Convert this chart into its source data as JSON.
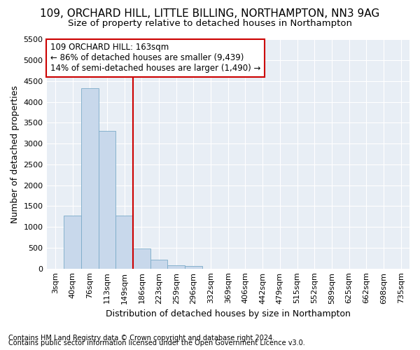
{
  "title1": "109, ORCHARD HILL, LITTLE BILLING, NORTHAMPTON, NN3 9AG",
  "title2": "Size of property relative to detached houses in Northampton",
  "xlabel": "Distribution of detached houses by size in Northampton",
  "ylabel": "Number of detached properties",
  "bar_labels": [
    "3sqm",
    "40sqm",
    "76sqm",
    "113sqm",
    "149sqm",
    "186sqm",
    "223sqm",
    "259sqm",
    "296sqm",
    "332sqm",
    "369sqm",
    "406sqm",
    "442sqm",
    "479sqm",
    "515sqm",
    "552sqm",
    "589sqm",
    "625sqm",
    "662sqm",
    "698sqm",
    "735sqm"
  ],
  "bar_heights": [
    0,
    1270,
    4330,
    3300,
    1280,
    480,
    220,
    80,
    55,
    0,
    0,
    0,
    0,
    0,
    0,
    0,
    0,
    0,
    0,
    0,
    0
  ],
  "bar_color": "#c8d8eb",
  "bar_edge_color": "#7aaac8",
  "vline_x": 4.5,
  "vline_color": "#cc0000",
  "ylim": [
    0,
    5500
  ],
  "yticks": [
    0,
    500,
    1000,
    1500,
    2000,
    2500,
    3000,
    3500,
    4000,
    4500,
    5000,
    5500
  ],
  "annotation_line1": "109 ORCHARD HILL: 163sqm",
  "annotation_line2": "← 86% of detached houses are smaller (9,439)",
  "annotation_line3": "14% of semi-detached houses are larger (1,490) →",
  "annotation_box_color": "#ffffff",
  "annotation_box_edge_color": "#cc0000",
  "footer1": "Contains HM Land Registry data © Crown copyright and database right 2024.",
  "footer2": "Contains public sector information licensed under the Open Government Licence v3.0.",
  "bg_color": "#ffffff",
  "plot_bg_color": "#e8eef5",
  "grid_color": "#ffffff",
  "title1_fontsize": 11,
  "title2_fontsize": 9.5,
  "ylabel_fontsize": 9,
  "xlabel_fontsize": 9,
  "tick_fontsize": 8,
  "annotation_fontsize": 8.5,
  "footer_fontsize": 7
}
